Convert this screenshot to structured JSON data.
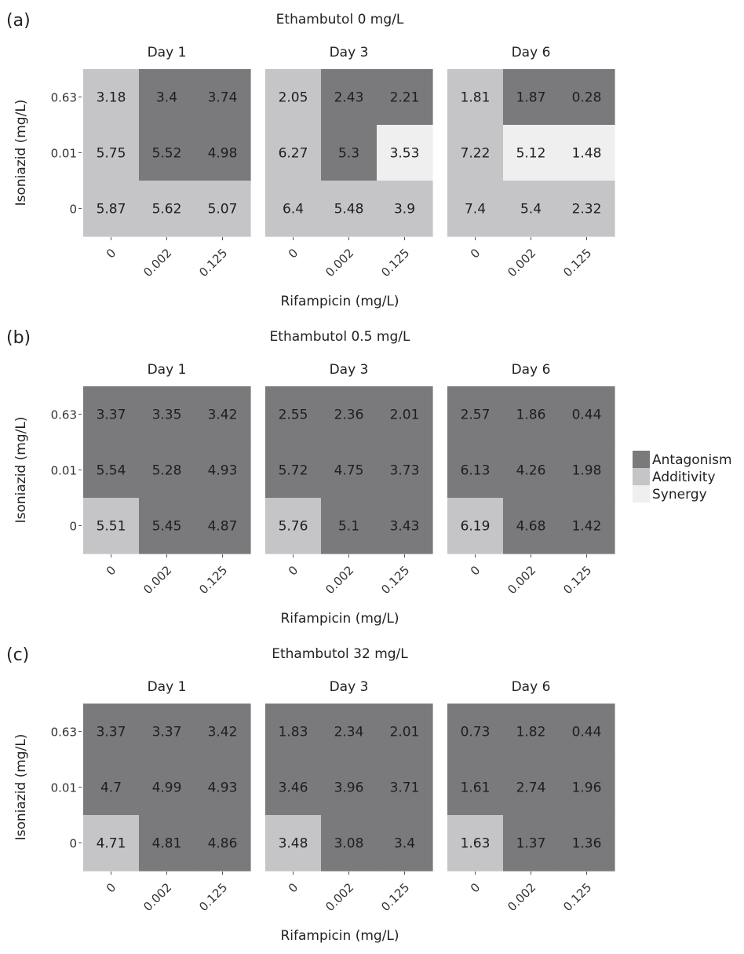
{
  "legend": [
    {
      "name": "Antagonism",
      "color": "#7a7a7c"
    },
    {
      "name": "Additivity",
      "color": "#c5c5c7"
    },
    {
      "name": "Synergy",
      "color": "#efefef"
    }
  ],
  "chart_data": [
    {
      "type": "heatmap",
      "panel": "(a)",
      "title": "Ethambutol 0 mg/L",
      "xlabel": "Rifampicin (mg/L)",
      "ylabel": "Isoniazid (mg/L)",
      "x_categories": [
        "0",
        "0.002",
        "0.125"
      ],
      "y_categories": [
        "0.63",
        "0.01",
        "0"
      ],
      "facets": [
        {
          "label": "Day 1",
          "values": [
            [
              3.18,
              3.4,
              3.74
            ],
            [
              5.75,
              5.52,
              4.98
            ],
            [
              5.87,
              5.62,
              5.07
            ]
          ],
          "classes": [
            [
              "Additivity",
              "Antagonism",
              "Antagonism"
            ],
            [
              "Additivity",
              "Antagonism",
              "Antagonism"
            ],
            [
              "Additivity",
              "Additivity",
              "Additivity"
            ]
          ]
        },
        {
          "label": "Day 3",
          "values": [
            [
              2.05,
              2.43,
              2.21
            ],
            [
              6.27,
              5.3,
              3.53
            ],
            [
              6.4,
              5.48,
              3.9
            ]
          ],
          "classes": [
            [
              "Additivity",
              "Antagonism",
              "Antagonism"
            ],
            [
              "Additivity",
              "Antagonism",
              "Synergy"
            ],
            [
              "Additivity",
              "Additivity",
              "Additivity"
            ]
          ]
        },
        {
          "label": "Day 6",
          "values": [
            [
              1.81,
              1.87,
              0.28
            ],
            [
              7.22,
              5.12,
              1.48
            ],
            [
              7.4,
              5.4,
              2.32
            ]
          ],
          "classes": [
            [
              "Additivity",
              "Antagonism",
              "Antagonism"
            ],
            [
              "Additivity",
              "Synergy",
              "Synergy"
            ],
            [
              "Additivity",
              "Additivity",
              "Additivity"
            ]
          ]
        }
      ]
    },
    {
      "type": "heatmap",
      "panel": "(b)",
      "title": "Ethambutol 0.5 mg/L",
      "xlabel": "Rifampicin (mg/L)",
      "ylabel": "Isoniazid (mg/L)",
      "x_categories": [
        "0",
        "0.002",
        "0.125"
      ],
      "y_categories": [
        "0.63",
        "0.01",
        "0"
      ],
      "facets": [
        {
          "label": "Day 1",
          "values": [
            [
              3.37,
              3.35,
              3.42
            ],
            [
              5.54,
              5.28,
              4.93
            ],
            [
              5.51,
              5.45,
              4.87
            ]
          ],
          "classes": [
            [
              "Antagonism",
              "Antagonism",
              "Antagonism"
            ],
            [
              "Antagonism",
              "Antagonism",
              "Antagonism"
            ],
            [
              "Additivity",
              "Antagonism",
              "Antagonism"
            ]
          ]
        },
        {
          "label": "Day 3",
          "values": [
            [
              2.55,
              2.36,
              2.01
            ],
            [
              5.72,
              4.75,
              3.73
            ],
            [
              5.76,
              5.1,
              3.43
            ]
          ],
          "classes": [
            [
              "Antagonism",
              "Antagonism",
              "Antagonism"
            ],
            [
              "Antagonism",
              "Antagonism",
              "Antagonism"
            ],
            [
              "Additivity",
              "Antagonism",
              "Antagonism"
            ]
          ]
        },
        {
          "label": "Day 6",
          "values": [
            [
              2.57,
              1.86,
              0.44
            ],
            [
              6.13,
              4.26,
              1.98
            ],
            [
              6.19,
              4.68,
              1.42
            ]
          ],
          "classes": [
            [
              "Antagonism",
              "Antagonism",
              "Antagonism"
            ],
            [
              "Antagonism",
              "Antagonism",
              "Antagonism"
            ],
            [
              "Additivity",
              "Antagonism",
              "Antagonism"
            ]
          ]
        }
      ]
    },
    {
      "type": "heatmap",
      "panel": "(c)",
      "title": "Ethambutol 32 mg/L",
      "xlabel": "Rifampicin (mg/L)",
      "ylabel": "Isoniazid (mg/L)",
      "x_categories": [
        "0",
        "0.002",
        "0.125"
      ],
      "y_categories": [
        "0.63",
        "0.01",
        "0"
      ],
      "facets": [
        {
          "label": "Day 1",
          "values": [
            [
              3.37,
              3.37,
              3.42
            ],
            [
              4.7,
              4.99,
              4.93
            ],
            [
              4.71,
              4.81,
              4.86
            ]
          ],
          "classes": [
            [
              "Antagonism",
              "Antagonism",
              "Antagonism"
            ],
            [
              "Antagonism",
              "Antagonism",
              "Antagonism"
            ],
            [
              "Additivity",
              "Antagonism",
              "Antagonism"
            ]
          ]
        },
        {
          "label": "Day 3",
          "values": [
            [
              1.83,
              2.34,
              2.01
            ],
            [
              3.46,
              3.96,
              3.71
            ],
            [
              3.48,
              3.08,
              3.4
            ]
          ],
          "classes": [
            [
              "Antagonism",
              "Antagonism",
              "Antagonism"
            ],
            [
              "Antagonism",
              "Antagonism",
              "Antagonism"
            ],
            [
              "Additivity",
              "Antagonism",
              "Antagonism"
            ]
          ]
        },
        {
          "label": "Day 6",
          "values": [
            [
              0.73,
              1.82,
              0.44
            ],
            [
              1.61,
              2.74,
              1.96
            ],
            [
              1.63,
              1.37,
              1.36
            ]
          ],
          "classes": [
            [
              "Antagonism",
              "Antagonism",
              "Antagonism"
            ],
            [
              "Antagonism",
              "Antagonism",
              "Antagonism"
            ],
            [
              "Additivity",
              "Antagonism",
              "Antagonism"
            ]
          ]
        }
      ]
    }
  ]
}
